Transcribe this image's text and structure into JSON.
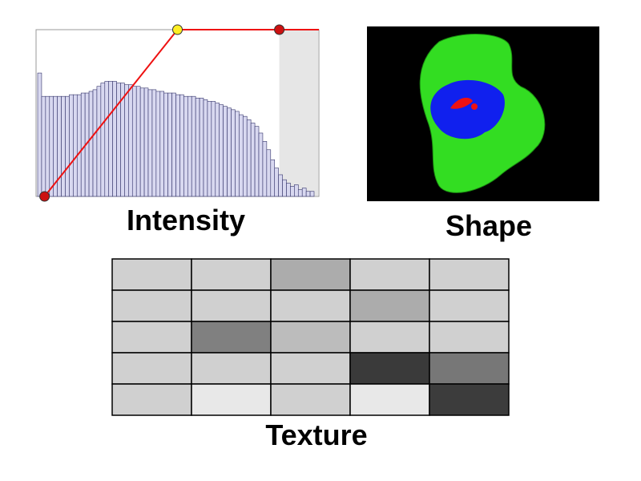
{
  "intensity": {
    "label": "Intensity",
    "histogram": [
      74,
      60,
      60,
      60,
      60,
      60,
      60,
      60,
      61,
      61,
      61,
      62,
      62,
      63,
      64,
      66,
      68,
      69,
      69,
      69,
      68,
      68,
      67,
      67,
      66,
      66,
      65,
      65,
      64,
      64,
      63,
      63,
      62,
      62,
      62,
      61,
      61,
      60,
      60,
      60,
      59,
      59,
      58,
      57,
      57,
      56,
      55,
      54,
      53,
      52,
      51,
      49,
      48,
      46,
      44,
      42,
      38,
      33,
      28,
      22,
      17,
      13,
      10,
      8,
      6,
      7,
      4,
      5,
      3,
      3
    ],
    "bar_color": "#d8d8f0",
    "bar_edge": "#33336a",
    "xlim": [
      0,
      100
    ],
    "ylim": [
      0,
      100
    ],
    "curve_x": [
      3,
      50,
      86,
      100
    ],
    "curve_y": [
      0,
      100,
      100,
      100
    ],
    "curve_color": "#ee1111",
    "marker_colors": [
      "#cc1111",
      "#ffee22",
      "#cc1111",
      null
    ],
    "selected_range": [
      86,
      100
    ],
    "selected_color": "#e6e6e6"
  },
  "shape": {
    "label": "Shape"
  },
  "texture": {
    "label": "Texture",
    "cells": [
      [
        "#d0d0d0",
        "#d0d0d0",
        "#acacac",
        "#d0d0d0",
        "#d0d0d0"
      ],
      [
        "#d0d0d0",
        "#d0d0d0",
        "#d0d0d0",
        "#acacac",
        "#d0d0d0"
      ],
      [
        "#d0d0d0",
        "#808080",
        "#bcbcbc",
        "#d0d0d0",
        "#d0d0d0"
      ],
      [
        "#d0d0d0",
        "#d0d0d0",
        "#d0d0d0",
        "#3a3a3a",
        "#777777"
      ],
      [
        "#d0d0d0",
        "#e8e8e8",
        "#d0d0d0",
        "#e8e8e8",
        "#3c3c3c"
      ]
    ]
  }
}
